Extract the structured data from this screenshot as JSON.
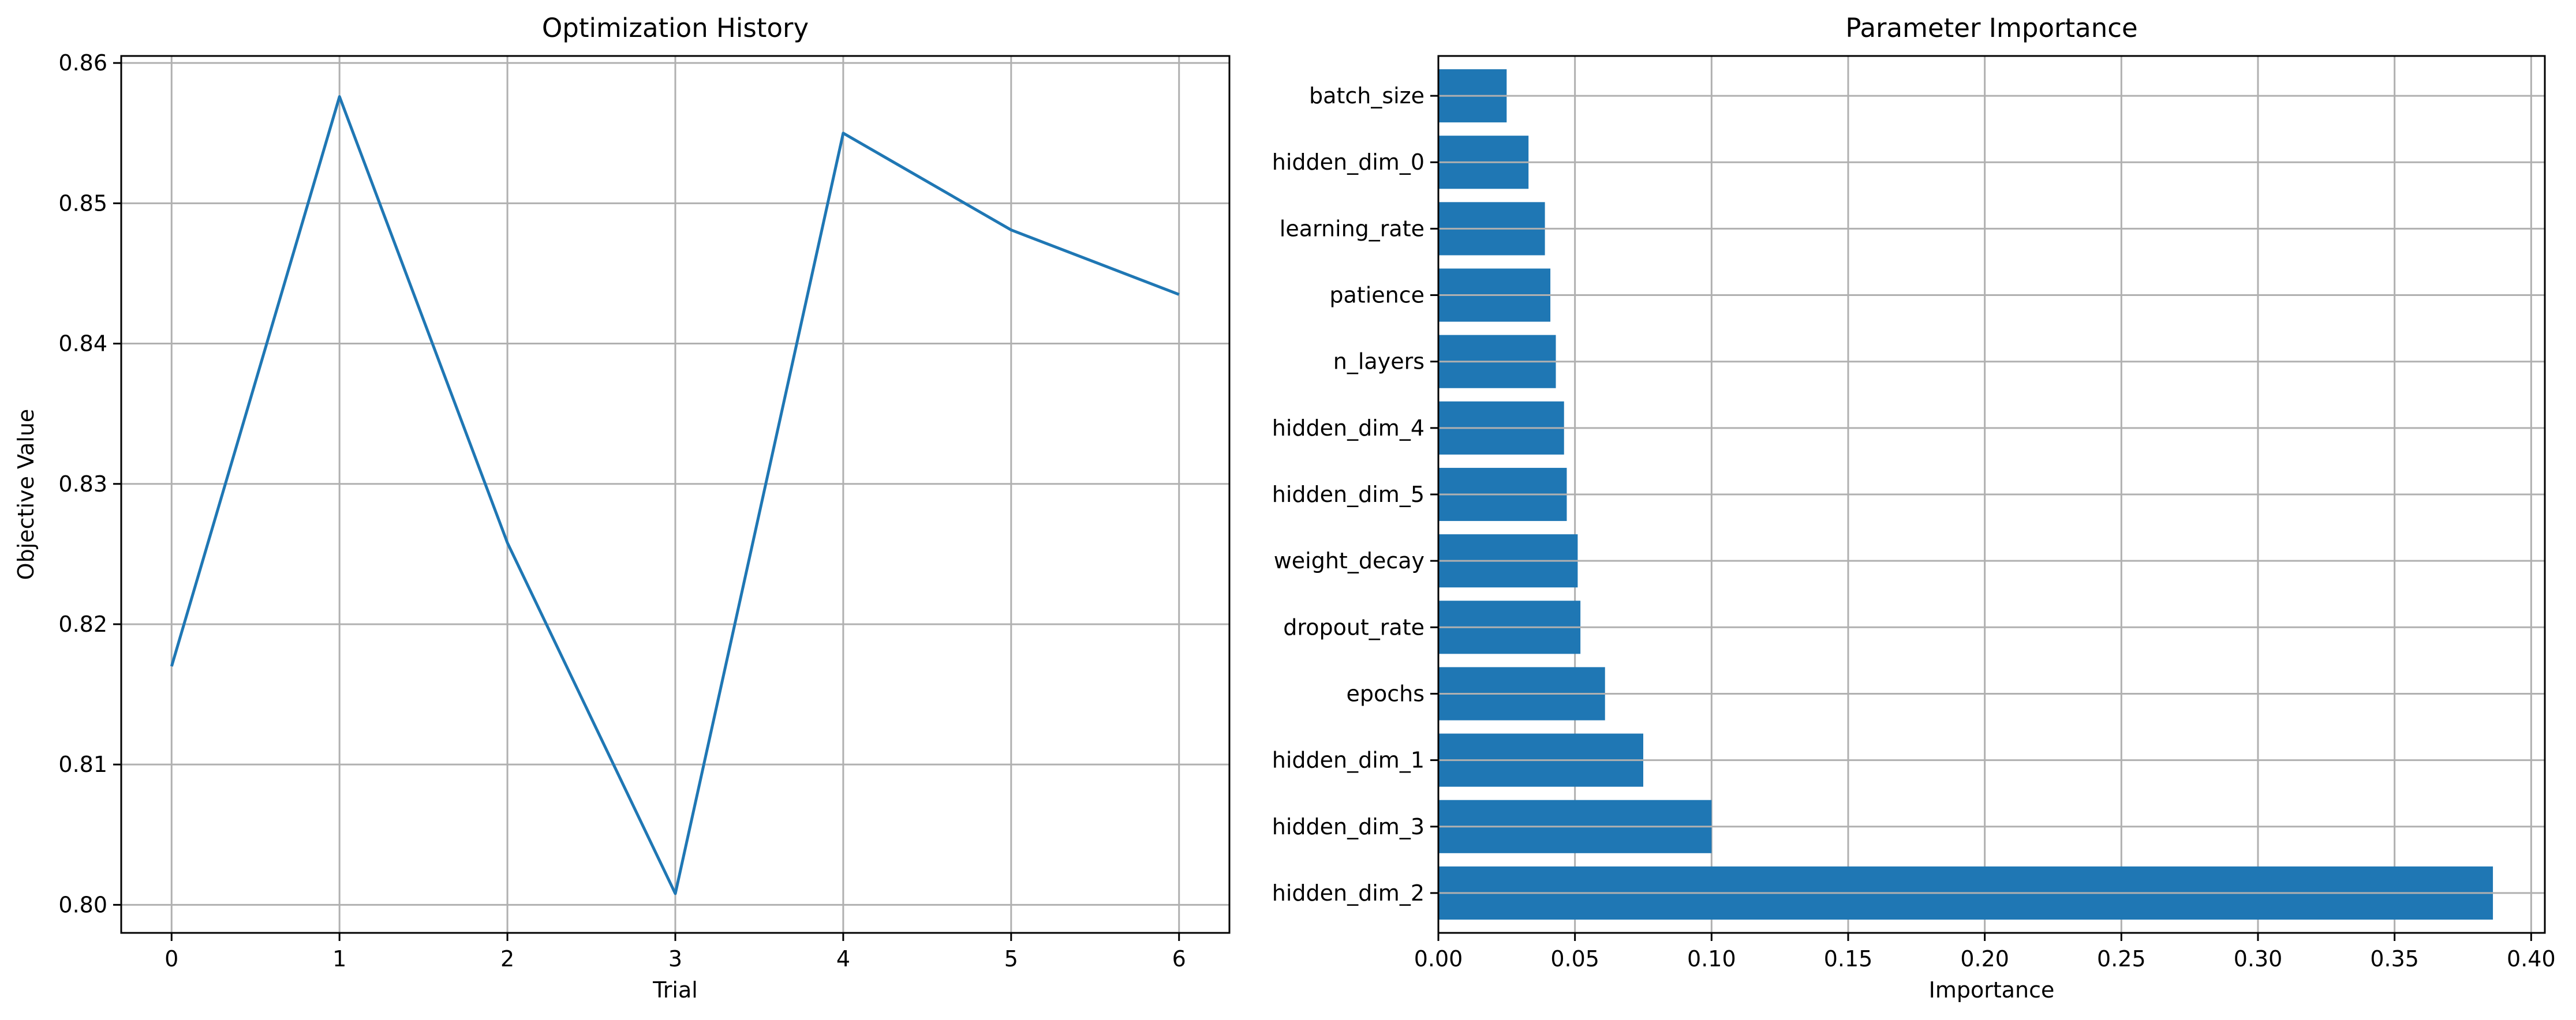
{
  "chart_data": [
    {
      "type": "line",
      "title": "Optimization History",
      "xlabel": "Trial",
      "ylabel": "Objective Value",
      "x": [
        0,
        1,
        2,
        3,
        4,
        5,
        6
      ],
      "y": [
        0.817,
        0.8576,
        0.8258,
        0.8008,
        0.855,
        0.8481,
        0.8435
      ],
      "xticks": [
        "0",
        "1",
        "2",
        "3",
        "4",
        "5",
        "6"
      ],
      "yticks": [
        "0.80",
        "0.81",
        "0.82",
        "0.83",
        "0.84",
        "0.85",
        "0.86"
      ],
      "xlim": [
        -0.3,
        6.3
      ],
      "ylim": [
        0.798,
        0.8605
      ],
      "grid": true,
      "line_color": "#1f77b4"
    },
    {
      "type": "bar",
      "orientation": "horizontal",
      "title": "Parameter Importance",
      "xlabel": "Importance",
      "ylabel": "",
      "categories": [
        "hidden_dim_2",
        "hidden_dim_3",
        "hidden_dim_1",
        "epochs",
        "dropout_rate",
        "weight_decay",
        "hidden_dim_5",
        "hidden_dim_4",
        "n_layers",
        "patience",
        "learning_rate",
        "hidden_dim_0",
        "batch_size"
      ],
      "values": [
        0.386,
        0.1,
        0.075,
        0.061,
        0.052,
        0.051,
        0.047,
        0.046,
        0.043,
        0.041,
        0.039,
        0.033,
        0.025
      ],
      "xticks": [
        "0.00",
        "0.05",
        "0.10",
        "0.15",
        "0.20",
        "0.25",
        "0.30",
        "0.35",
        "0.40"
      ],
      "xlim": [
        0,
        0.405
      ],
      "grid": true,
      "bar_color": "#1f77b4"
    }
  ]
}
